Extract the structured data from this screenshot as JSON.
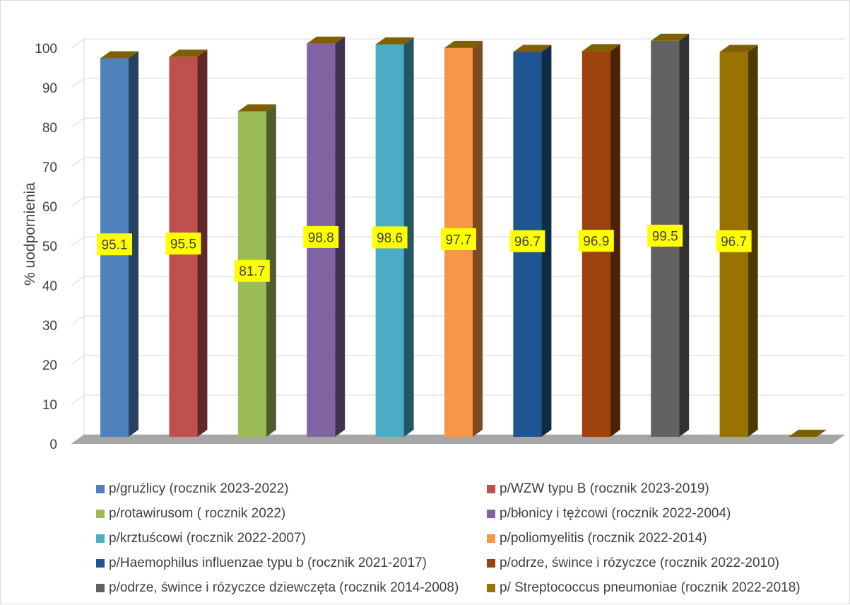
{
  "chart_data": {
    "type": "bar",
    "title": "",
    "xlabel": "",
    "ylabel": "% uodpornienia",
    "ylim": [
      0,
      100
    ],
    "yticks": [
      0,
      10,
      20,
      30,
      40,
      50,
      60,
      70,
      80,
      90,
      100
    ],
    "grid": true,
    "legend_position": "bottom",
    "series": [
      {
        "name": "p/gruźlicy (rocznik 2023-2022)",
        "value": 95.1,
        "label": "95.1",
        "color": "#4f81bd"
      },
      {
        "name": "p/WZW typu B (rocznik 2023-2019)",
        "value": 95.5,
        "label": "95.5",
        "color": "#c0504d"
      },
      {
        "name": "p/rotawirusom ( rocznik 2022)",
        "value": 81.7,
        "label": "81.7",
        "color": "#9bbb59"
      },
      {
        "name": "p/błonicy i tężcowi (rocznik 2022-2004)",
        "value": 98.8,
        "label": "98.8",
        "color": "#8064a2"
      },
      {
        "name": "p/krztuścowi (rocznik 2022-2007)",
        "value": 98.6,
        "label": "98.6",
        "color": "#4bacc6"
      },
      {
        "name": "p/poliomyelitis (rocznik 2022-2014)",
        "value": 97.7,
        "label": "97.7",
        "color": "#f79646"
      },
      {
        "name": "p/Haemophilus influenzae typu b (rocznik 2021-2017)",
        "value": 96.7,
        "label": "96.7",
        "color": "#1f5590"
      },
      {
        "name": "p/odrze, śwince i rózyczce (rocznik 2022-2010)",
        "value": 96.9,
        "label": "96.9",
        "color": "#9c420d"
      },
      {
        "name": "p/odrze, śwince i rózyczce dziewczęta (rocznik 2014-2008)",
        "value": 99.5,
        "label": "99.5",
        "color": "#626262"
      },
      {
        "name": "p/ Streptococcus pneumoniae (rocznik 2022-2018)",
        "value": 96.7,
        "label": "96.7",
        "color": "#997300"
      }
    ],
    "top_face_color": "#7f6000",
    "label_background": "#ffff00",
    "floor_color": "#a6a6a6"
  }
}
